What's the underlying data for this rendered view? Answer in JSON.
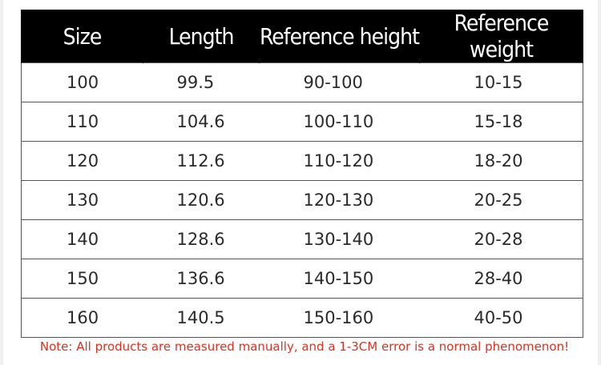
{
  "table": {
    "headers": [
      "Size",
      "Length",
      "Reference height",
      "Reference weight"
    ],
    "rows": [
      [
        "100",
        "99.5",
        "90-100",
        "10-15"
      ],
      [
        "110",
        "104.6",
        "100-110",
        "15-18"
      ],
      [
        "120",
        "112.6",
        "110-120",
        "18-20"
      ],
      [
        "130",
        "120.6",
        "120-130",
        "20-25"
      ],
      [
        "140",
        "128.6",
        "130-140",
        "20-28"
      ],
      [
        "150",
        "136.6",
        "140-150",
        "28-40"
      ],
      [
        "160",
        "140.5",
        "150-160",
        "40-50"
      ]
    ]
  },
  "note": "Note: All products are measured manually, and a 1-3CM error is a normal phenomenon!",
  "colors": {
    "header_bg": "#000000",
    "header_text": "#ffffff",
    "note_text": "#e0301e"
  }
}
